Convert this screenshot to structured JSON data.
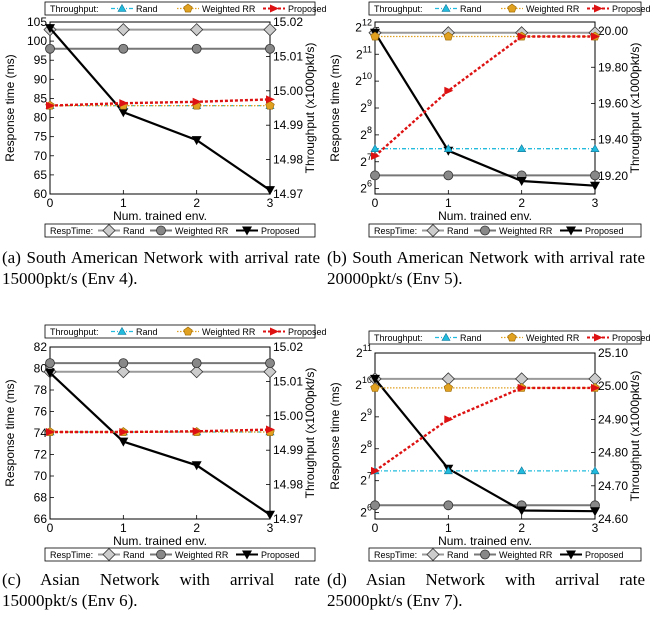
{
  "figure": {
    "captions": [
      "(a) South American Network with arrival rate 15000pkt/s (Env 4).",
      "(b) South American Network with arrival rate 20000pkt/s (Env 5).",
      "(c) Asian Network with arrival rate 15000pkt/s (Env 6).",
      "(d) Asian Network with arrival rate 25000pkt/s (Env 7)."
    ]
  },
  "colors": {
    "resp_rand": "#9a9a9a",
    "resp_weighted_rr": "#777777",
    "resp_proposed": "#000000",
    "thr_rand": "#22bbdd",
    "thr_weighted_rr": "#e0a020",
    "thr_proposed": "#dd1111"
  },
  "chart_data": [
    {
      "type": "line",
      "x": [
        0,
        1,
        2,
        3
      ],
      "xlabel": "Num. trained env.",
      "ylabel_left": "Response time (ms)",
      "ylabel_right": "Throughput (x1000pkt/s)",
      "left_ylim": [
        60,
        105
      ],
      "left_ticks": [
        "60",
        "65",
        "70",
        "75",
        "80",
        "85",
        "90",
        "95",
        "100",
        "105"
      ],
      "right_ylim": [
        14.97,
        15.02
      ],
      "right_ticks": [
        "14.97",
        "14.98",
        "14.99",
        "15.00",
        "15.01",
        "15.02"
      ],
      "throughput_legend": {
        "title": "Throughput:",
        "entries": [
          "Rand",
          "Weighted RR",
          "Proposed"
        ]
      },
      "resptime_legend": {
        "title": "RespTime:",
        "entries": [
          "Rand",
          "Weighted RR",
          "Proposed"
        ]
      },
      "response_series": [
        {
          "name": "Rand",
          "values": [
            103,
            103,
            103,
            103
          ]
        },
        {
          "name": "Weighted RR",
          "values": [
            98,
            98,
            98,
            98
          ]
        },
        {
          "name": "Proposed",
          "values": [
            103.4,
            81.4,
            74.1,
            61
          ]
        }
      ],
      "throughput_series": [
        {
          "name": "Rand",
          "values": [
            14.9957,
            14.9957,
            14.9957,
            14.9957
          ]
        },
        {
          "name": "Weighted RR",
          "values": [
            14.9957,
            14.9957,
            14.9957,
            14.9957
          ]
        },
        {
          "name": "Proposed",
          "values": [
            14.9957,
            14.9964,
            14.9968,
            14.9975
          ]
        }
      ]
    },
    {
      "type": "line",
      "x": [
        0,
        1,
        2,
        3
      ],
      "xlabel": "Num. trained env.",
      "ylabel_left": "Response time (ms)",
      "ylabel_right": "Throughput (x1000pkt/s)",
      "left_log2": true,
      "left_ylim": [
        5.8,
        12.2
      ],
      "left_ticks": [
        "2^6",
        "2^7",
        "2^8",
        "2^9",
        "2^10",
        "2^11",
        "2^12"
      ],
      "right_ylim": [
        19.1,
        20.05
      ],
      "right_ticks": [
        "19.20",
        "19.40",
        "19.60",
        "19.80",
        "20.00"
      ],
      "throughput_legend": {
        "title": "Throughput:",
        "entries": [
          "Rand",
          "Weighted RR",
          "Proposed"
        ]
      },
      "resptime_legend": {
        "title": "RespTime:",
        "entries": [
          "Rand",
          "Weighted RR",
          "Proposed"
        ]
      },
      "response_series": [
        {
          "name": "Rand",
          "values": [
            3566,
            3566,
            3566,
            3566
          ]
        },
        {
          "name": "Weighted RR",
          "values": [
            90,
            90,
            90,
            90
          ]
        },
        {
          "name": "Proposed",
          "values": [
            3566,
            170,
            78,
            69
          ]
        }
      ],
      "throughput_series": [
        {
          "name": "Rand",
          "values": [
            19.35,
            19.35,
            19.35,
            19.35
          ]
        },
        {
          "name": "Weighted RR",
          "values": [
            19.97,
            19.97,
            19.97,
            19.97
          ]
        },
        {
          "name": "Proposed",
          "values": [
            19.31,
            19.67,
            19.97,
            19.97
          ]
        }
      ]
    },
    {
      "type": "line",
      "x": [
        0,
        1,
        2,
        3
      ],
      "xlabel": "Num. trained env.",
      "ylabel_left": "Response time (ms)",
      "ylabel_right": "Throughput (x1000pkt/s)",
      "left_ylim": [
        66,
        82
      ],
      "left_ticks": [
        "66",
        "68",
        "70",
        "72",
        "74",
        "76",
        "78",
        "80",
        "82"
      ],
      "right_ylim": [
        14.97,
        15.02
      ],
      "right_ticks": [
        "14.97",
        "14.98",
        "14.99",
        "15.00",
        "15.01",
        "15.02"
      ],
      "throughput_legend": {
        "title": "Throughput:",
        "entries": [
          "Rand",
          "Weighted RR",
          "Proposed"
        ]
      },
      "resptime_legend": {
        "title": "RespTime:",
        "entries": [
          "Rand",
          "Weighted RR",
          "Proposed"
        ]
      },
      "response_series": [
        {
          "name": "Rand",
          "values": [
            79.7,
            79.7,
            79.7,
            79.7
          ]
        },
        {
          "name": "Weighted RR",
          "values": [
            80.5,
            80.5,
            80.5,
            80.5
          ]
        },
        {
          "name": "Proposed",
          "values": [
            79.6,
            73.2,
            71,
            66.4
          ]
        }
      ],
      "throughput_series": [
        {
          "name": "Rand",
          "values": [
            14.9953,
            14.9953,
            14.9953,
            14.9953
          ]
        },
        {
          "name": "Weighted RR",
          "values": [
            14.9953,
            14.9953,
            14.9953,
            14.9953
          ]
        },
        {
          "name": "Proposed",
          "values": [
            14.9953,
            14.9953,
            14.9955,
            14.996
          ]
        }
      ]
    },
    {
      "type": "line",
      "x": [
        0,
        1,
        2,
        3
      ],
      "xlabel": "Num. trained env.",
      "ylabel_left": "Response time (ms)",
      "ylabel_right": "Throughput (x1000pkt/s)",
      "left_log2": true,
      "left_ylim": [
        5.8,
        11
      ],
      "left_ticks": [
        "2^6",
        "2^7",
        "2^8",
        "2^9",
        "2^10",
        "2^11"
      ],
      "right_ylim": [
        24.6,
        25.1
      ],
      "right_ticks": [
        "24.60",
        "24.70",
        "24.80",
        "24.90",
        "25.00",
        "25.10"
      ],
      "throughput_legend": {
        "title": "Throughput:",
        "entries": [
          "Rand",
          "Weighted RR",
          "Proposed"
        ]
      },
      "resptime_legend": {
        "title": "RespTime:",
        "entries": [
          "Rand",
          "Weighted RR",
          "Proposed"
        ]
      },
      "response_series": [
        {
          "name": "Rand",
          "values": [
            1168,
            1168,
            1168,
            1168
          ]
        },
        {
          "name": "Weighted RR",
          "values": [
            75,
            75,
            75,
            75
          ]
        },
        {
          "name": "Proposed",
          "values": [
            1168,
            166,
            67,
            66
          ]
        }
      ],
      "throughput_series": [
        {
          "name": "Rand",
          "values": [
            24.745,
            24.745,
            24.745,
            24.745
          ]
        },
        {
          "name": "Weighted RR",
          "values": [
            24.995,
            24.995,
            24.995,
            24.995
          ]
        },
        {
          "name": "Proposed",
          "values": [
            24.745,
            24.9,
            24.995,
            24.995
          ]
        }
      ]
    }
  ]
}
